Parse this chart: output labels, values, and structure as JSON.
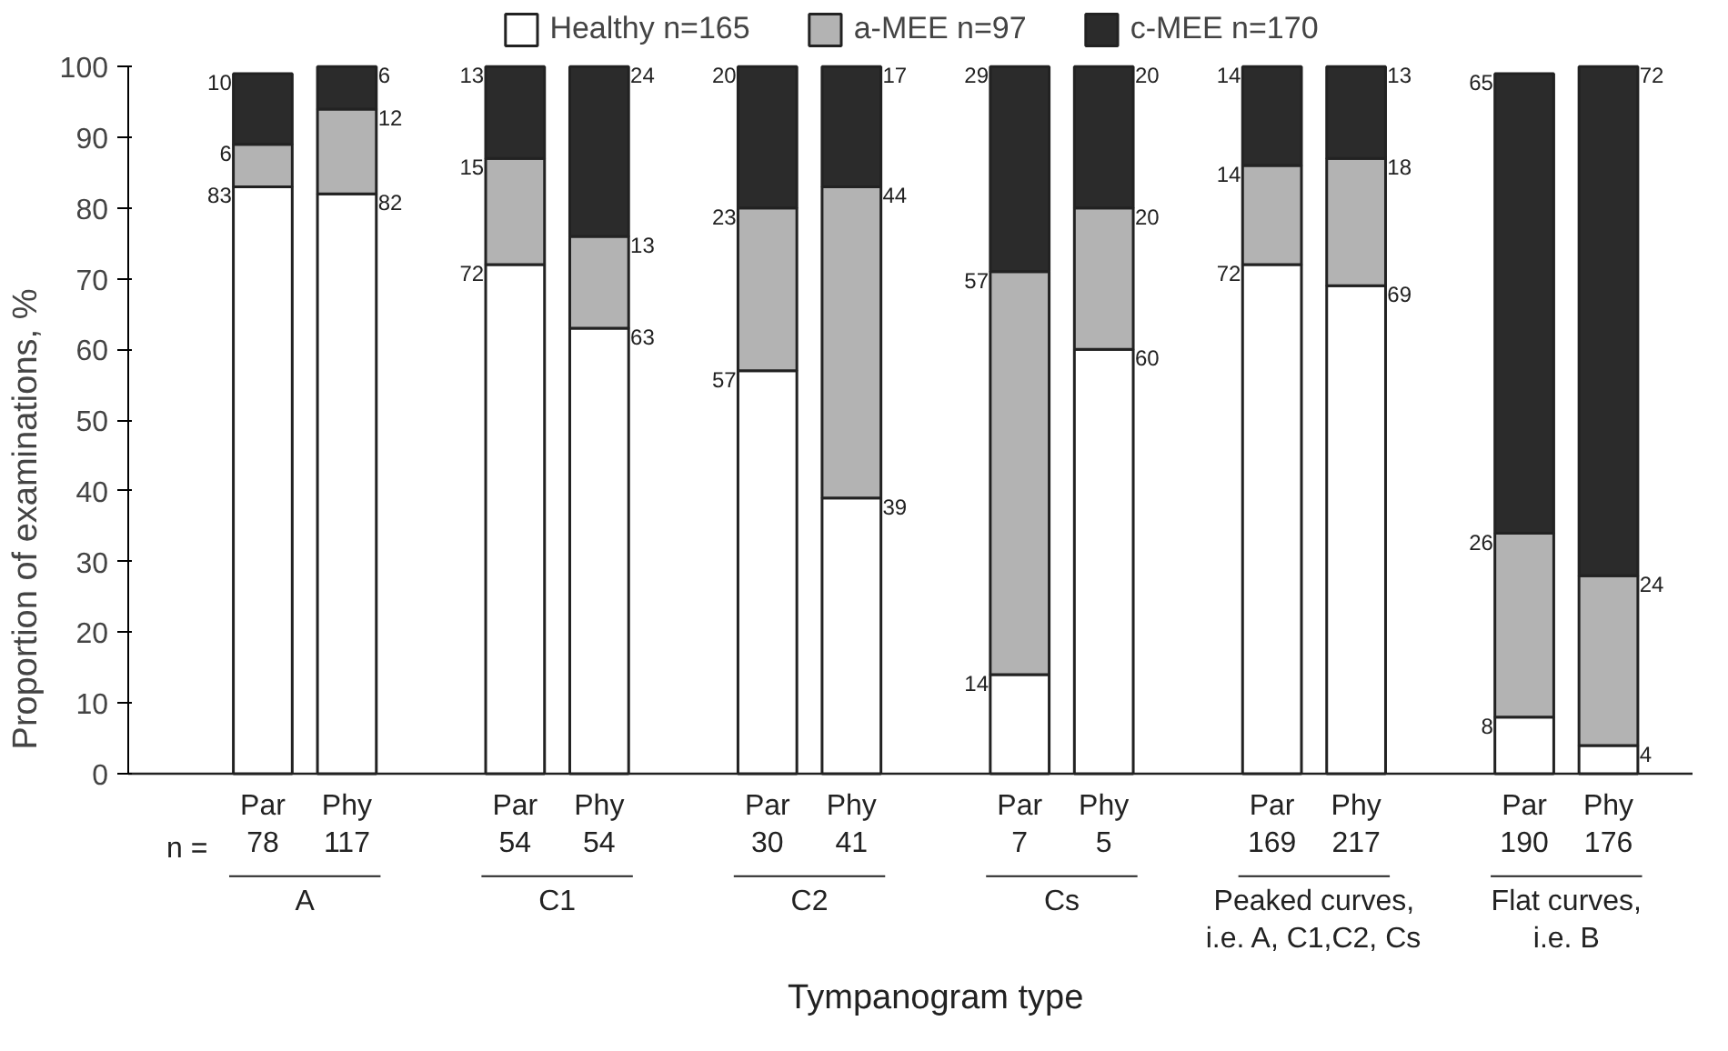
{
  "chart_data": {
    "type": "bar",
    "stacked": true,
    "ylabel": "Proportion of examinations, %",
    "xlabel": "Tympanogram type",
    "categories": [
      "Par\n78",
      "Phy\n117",
      "Par\n54",
      "Phy\n54",
      "Par\n30",
      "Phy\n41",
      "Par\n7",
      "Phy\n5",
      "Par\n169",
      "Phy\n217",
      "Par\n190",
      "Phy\n176"
    ],
    "series": [
      {
        "name": "Healthy n=165",
        "color": "#ffffff",
        "values": [
          83,
          82,
          72,
          63,
          57,
          39,
          14,
          60,
          72,
          69,
          8,
          4
        ]
      },
      {
        "name": "a-MEE n=97",
        "color": "#b3b3b3",
        "values": [
          6,
          12,
          15,
          13,
          23,
          44,
          57,
          20,
          14,
          18,
          26,
          24
        ]
      },
      {
        "name": "c-MEE n=170",
        "color": "#2b2b2b",
        "values": [
          10,
          6,
          13,
          24,
          20,
          17,
          29,
          20,
          14,
          13,
          65,
          72
        ]
      }
    ],
    "annotations": [
      "n =",
      "A",
      "C1",
      "C2",
      "Cs",
      "Peaked curves,\ni.e. A, C1,C2, Cs",
      "Flat curves,\ni.e. B"
    ],
    "ylim": [
      0,
      100
    ],
    "yticks": [
      0,
      10,
      20,
      30,
      40,
      50,
      60,
      70,
      80,
      90,
      100
    ],
    "grid": false,
    "legend": "top",
    "data_labels": true
  }
}
